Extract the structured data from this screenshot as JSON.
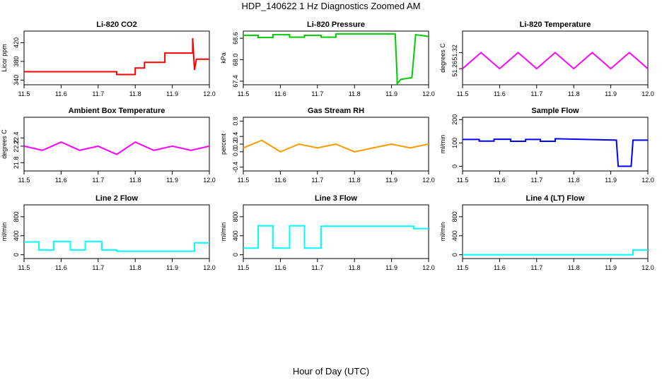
{
  "figure": {
    "title": "HDP_140622  1 Hz Diagnostics Zoomed AM",
    "xlabel": "Hour of Day (UTC)"
  },
  "chart_data": [
    {
      "type": "line",
      "title": "Li-820 CO2",
      "ylabel": "Licor ppm",
      "color": "#ff0000",
      "xlim": [
        11.5,
        12.0
      ],
      "ylim": [
        330,
        445
      ],
      "xticks": [
        "11.5",
        "11.6",
        "11.7",
        "11.8",
        "11.9",
        "12.0"
      ],
      "yticks": [
        "340",
        "380",
        "420"
      ],
      "x": [
        11.5,
        11.75,
        11.75,
        11.8,
        11.8,
        11.825,
        11.825,
        11.88,
        11.88,
        11.955,
        11.955,
        11.96,
        11.965,
        12.0
      ],
      "y": [
        358,
        358,
        352,
        352,
        366,
        366,
        378,
        378,
        398,
        398,
        430,
        362,
        385,
        385
      ]
    },
    {
      "type": "line",
      "title": "Li-820 Pressure",
      "ylabel": "kPa",
      "color": "#00cc00",
      "xlim": [
        11.5,
        12.0
      ],
      "ylim": [
        67.3,
        68.8
      ],
      "xticks": [
        "11.5",
        "11.6",
        "11.7",
        "11.8",
        "11.9",
        "12.0"
      ],
      "yticks": [
        "67.4",
        "68.0",
        "68.6"
      ],
      "x": [
        11.5,
        11.54,
        11.54,
        11.58,
        11.58,
        11.625,
        11.625,
        11.665,
        11.665,
        11.71,
        11.71,
        11.75,
        11.75,
        11.91,
        11.915,
        11.915,
        11.925,
        11.955,
        11.965,
        12.0
      ],
      "y": [
        68.68,
        68.68,
        68.62,
        68.62,
        68.7,
        68.7,
        68.63,
        68.63,
        68.68,
        68.68,
        68.63,
        68.63,
        68.72,
        68.72,
        67.5,
        67.33,
        67.45,
        67.5,
        68.7,
        68.65
      ]
    },
    {
      "type": "line",
      "title": "Li-820 Temperature",
      "ylabel": "degrees C",
      "color": "#ff00ff",
      "xlim": [
        11.5,
        12.0
      ],
      "ylim": [
        51.2,
        51.4
      ],
      "xticks": [
        "11.5",
        "11.6",
        "11.7",
        "11.8",
        "11.9",
        "12.0"
      ],
      "yticks": [
        "51.26",
        "51.32"
      ],
      "x": [
        11.5,
        11.55,
        11.6,
        11.65,
        11.7,
        11.75,
        11.8,
        11.85,
        11.9,
        11.95,
        12.0
      ],
      "y": [
        51.26,
        51.32,
        51.26,
        51.32,
        51.26,
        51.32,
        51.26,
        51.32,
        51.26,
        51.32,
        51.26
      ]
    },
    {
      "type": "line",
      "title": "Ambient Box Temperature",
      "ylabel": "degrees C",
      "color": "#ff00ff",
      "xlim": [
        11.5,
        12.0
      ],
      "ylim": [
        21.6,
        22.9
      ],
      "xticks": [
        "11.5",
        "11.6",
        "11.7",
        "11.8",
        "11.9",
        "12.0"
      ],
      "yticks": [
        "21.8",
        "22.2",
        "22.4"
      ],
      "x": [
        11.5,
        11.55,
        11.6,
        11.65,
        11.7,
        11.75,
        11.8,
        11.85,
        11.9,
        11.95,
        12.0
      ],
      "y": [
        22.2,
        22.1,
        22.3,
        22.1,
        22.2,
        22.0,
        22.3,
        22.1,
        22.2,
        22.1,
        22.2
      ]
    },
    {
      "type": "line",
      "title": "Gas Stream RH",
      "ylabel": "percent",
      "color": "#ff9900",
      "xlim": [
        11.5,
        12.0
      ],
      "ylim": [
        -0.5,
        0.9
      ],
      "xticks": [
        "11.5",
        "11.6",
        "11.7",
        "11.8",
        "11.9",
        "12.0"
      ],
      "yticks": [
        "-0.4",
        "0.0",
        "0.2",
        "0.4",
        "0.8"
      ],
      "x": [
        11.5,
        11.55,
        11.6,
        11.65,
        11.7,
        11.75,
        11.8,
        11.85,
        11.9,
        11.95,
        12.0
      ],
      "y": [
        0.1,
        0.3,
        0.0,
        0.2,
        0.1,
        0.2,
        0.0,
        0.1,
        0.2,
        0.1,
        0.2
      ]
    },
    {
      "type": "line",
      "title": "Sample Flow",
      "ylabel": "ml/min",
      "color": "#0000ff",
      "xlim": [
        11.5,
        12.0
      ],
      "ylim": [
        -20,
        210
      ],
      "xticks": [
        "11.5",
        "11.6",
        "11.7",
        "11.8",
        "11.9",
        "12.0"
      ],
      "yticks": [
        "0",
        "100",
        "200"
      ],
      "x": [
        11.5,
        11.545,
        11.545,
        11.585,
        11.585,
        11.63,
        11.63,
        11.67,
        11.67,
        11.71,
        11.71,
        11.75,
        11.75,
        11.915,
        11.92,
        11.955,
        11.96,
        12.0
      ],
      "y": [
        115,
        115,
        108,
        108,
        116,
        116,
        107,
        107,
        115,
        115,
        107,
        107,
        118,
        112,
        0,
        0,
        112,
        112
      ]
    },
    {
      "type": "line",
      "title": "Line 2 Flow",
      "ylabel": "ml/min",
      "color": "#00ffff",
      "xlim": [
        11.5,
        12.0
      ],
      "ylim": [
        -80,
        1050
      ],
      "xticks": [
        "11.5",
        "11.6",
        "11.7",
        "11.8",
        "11.9",
        "12.0"
      ],
      "yticks": [
        "0",
        "400",
        "800"
      ],
      "x": [
        11.5,
        11.54,
        11.54,
        11.58,
        11.58,
        11.625,
        11.625,
        11.665,
        11.665,
        11.71,
        11.71,
        11.75,
        11.75,
        11.96,
        11.96,
        12.0
      ],
      "y": [
        270,
        270,
        100,
        100,
        280,
        280,
        100,
        100,
        280,
        280,
        100,
        100,
        75,
        75,
        250,
        250
      ]
    },
    {
      "type": "line",
      "title": "Line 3 Flow",
      "ylabel": "ml/min",
      "color": "#00ffff",
      "xlim": [
        11.5,
        12.0
      ],
      "ylim": [
        -80,
        1050
      ],
      "xticks": [
        "11.5",
        "11.6",
        "11.7",
        "11.8",
        "11.9",
        "12.0"
      ],
      "yticks": [
        "0",
        "400",
        "800"
      ],
      "x": [
        11.5,
        11.54,
        11.54,
        11.58,
        11.58,
        11.625,
        11.625,
        11.665,
        11.665,
        11.71,
        11.71,
        11.96,
        11.96,
        12.0
      ],
      "y": [
        140,
        140,
        610,
        610,
        140,
        140,
        610,
        610,
        140,
        140,
        600,
        600,
        550,
        550
      ]
    },
    {
      "type": "line",
      "title": "Line 4 (LT) Flow",
      "ylabel": "ml/min",
      "color": "#00ffff",
      "xlim": [
        11.5,
        12.0
      ],
      "ylim": [
        -80,
        1050
      ],
      "xticks": [
        "11.5",
        "11.6",
        "11.7",
        "11.8",
        "11.9",
        "12.0"
      ],
      "yticks": [
        "0",
        "400",
        "800"
      ],
      "x": [
        11.5,
        11.96,
        11.96,
        12.0
      ],
      "y": [
        0,
        0,
        100,
        100
      ]
    }
  ]
}
